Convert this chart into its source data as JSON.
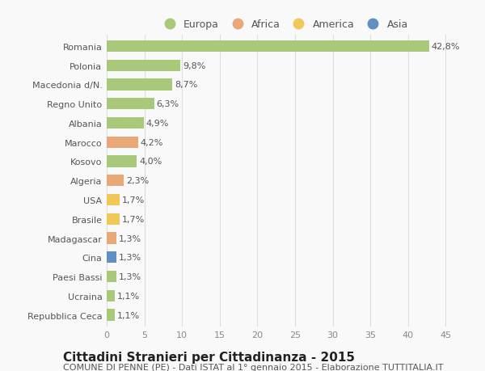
{
  "countries": [
    "Romania",
    "Polonia",
    "Macedonia d/N.",
    "Regno Unito",
    "Albania",
    "Marocco",
    "Kosovo",
    "Algeria",
    "USA",
    "Brasile",
    "Madagascar",
    "Cina",
    "Paesi Bassi",
    "Ucraina",
    "Repubblica Ceca"
  ],
  "values": [
    42.8,
    9.8,
    8.7,
    6.3,
    4.9,
    4.2,
    4.0,
    2.3,
    1.7,
    1.7,
    1.3,
    1.3,
    1.3,
    1.1,
    1.1
  ],
  "continents": [
    "Europa",
    "Europa",
    "Europa",
    "Europa",
    "Europa",
    "Africa",
    "Europa",
    "Africa",
    "America",
    "America",
    "Africa",
    "Asia",
    "Europa",
    "Europa",
    "Europa"
  ],
  "continent_colors": {
    "Europa": "#a8c87a",
    "Africa": "#e8a878",
    "America": "#f0c85a",
    "Asia": "#6090c0"
  },
  "legend_order": [
    "Europa",
    "Africa",
    "America",
    "Asia"
  ],
  "title": "Cittadini Stranieri per Cittadinanza - 2015",
  "subtitle": "COMUNE DI PENNE (PE) - Dati ISTAT al 1° gennaio 2015 - Elaborazione TUTTITALIA.IT",
  "xlim": [
    0,
    47
  ],
  "xticks": [
    0,
    5,
    10,
    15,
    20,
    25,
    30,
    35,
    40,
    45
  ],
  "background_color": "#f9f9f9",
  "grid_color": "#dddddd",
  "bar_height": 0.6,
  "title_fontsize": 11,
  "subtitle_fontsize": 8,
  "legend_fontsize": 9,
  "tick_fontsize": 8,
  "value_fontsize": 8
}
